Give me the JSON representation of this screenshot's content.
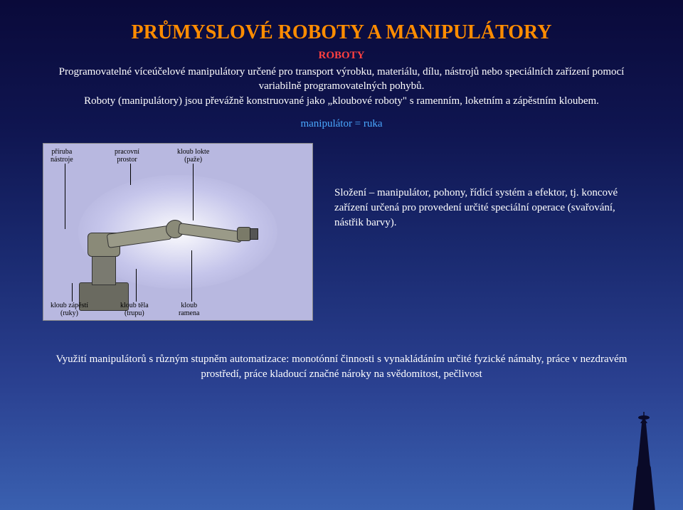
{
  "title": "PRŮMYSLOVÉ ROBOTY A MANIPULÁTORY",
  "subtitle": "ROBOTY",
  "para1": "Programovatelné víceúčelové manipulátory určené pro transport výrobku, materiálu, dílu, nástrojů nebo speciálních zařízení pomocí variabilně programovatelných pohybů.",
  "para2": "Roboty (manipulátory) jsou převážně konstruované jako „kloubové roboty\" s ramenním, loketním a zápěstním kloubem.",
  "eq": "manipulátor = ruka",
  "side1": "Složení – manipulátor, pohony, řídící systém a efektor, tj. koncové  zařízení určená pro provedení určité speciální operace (svařování, nástřik barvy).",
  "bottom": "Využití manipulátorů s různým stupněm automatizace: monotónní činnosti s vynakládáním určité fyzické námahy, práce v nezdravém prostředí, práce kladoucí značné nároky na svědomitost, pečlivost",
  "fig": {
    "labels": {
      "flange": "příruba\nnástroje",
      "workspace": "pracovní\nprostor",
      "elbow": "kloub lokte\n(paže)",
      "wrist": "kloub zápěstí\n(ruky)",
      "trunk": "kloub těla\n(trupu)",
      "shoulder": "kloub\nramena"
    },
    "colors": {
      "bg": "#b8b8e0",
      "robot_base": "#6a6a60",
      "robot_arm": "#9a9a88",
      "label_text": "#000000"
    }
  }
}
